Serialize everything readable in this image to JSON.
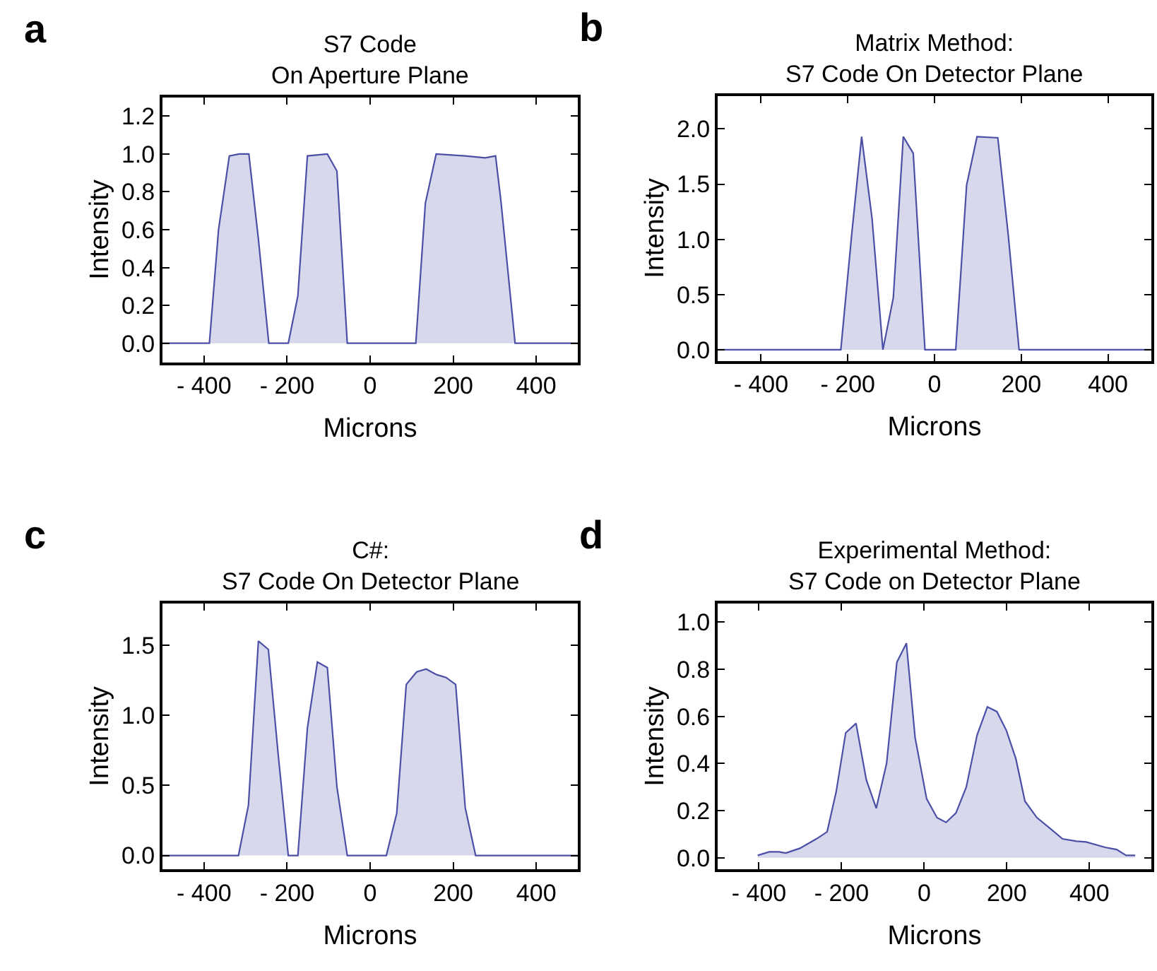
{
  "chart_data": [
    {
      "type": "area",
      "title": "S7 Code\nOn Aperture Plane",
      "xlabel": "Microns",
      "ylabel": "Intensity",
      "annotations": [
        "a"
      ],
      "color": "#4b4fa6",
      "x": [
        -500,
        -387,
        -365,
        -339,
        -315,
        -292,
        -269,
        -244,
        -197,
        -174,
        -151,
        -103,
        -80,
        -55,
        110,
        133,
        159,
        229,
        277,
        302,
        315,
        349,
        500
      ],
      "values": [
        0,
        0,
        0.6,
        0.99,
        1.0,
        1.0,
        0.55,
        0,
        0,
        0.25,
        0.99,
        1.0,
        0.91,
        0,
        0,
        0.74,
        1.0,
        0.99,
        0.98,
        0.99,
        0.75,
        0,
        0
      ],
      "xlim": [
        -500,
        500
      ],
      "ylim": [
        -0.1,
        1.3
      ],
      "xticks": [
        -400,
        -200,
        0,
        200,
        400
      ],
      "yticks": [
        {
          "value": 0,
          "label": "0.0"
        },
        {
          "value": 0.2,
          "label": "0.2"
        },
        {
          "value": 0.4,
          "label": "0.4"
        },
        {
          "value": 0.6,
          "label": "0.6"
        },
        {
          "value": 0.8,
          "label": "0.8"
        },
        {
          "value": 1.0,
          "label": "1.0"
        },
        {
          "value": 1.2,
          "label": "1.2"
        }
      ]
    },
    {
      "type": "area",
      "title": "Matrix Method:\nS7 Code On Detector Plane",
      "xlabel": "Microns",
      "ylabel": "Intensity",
      "annotations": [
        "b"
      ],
      "color": "#4b4fa6",
      "x": [
        -500,
        -216,
        -191,
        -168,
        -144,
        -119,
        -95,
        -72,
        -49,
        -22,
        49,
        74,
        98,
        146,
        170,
        195,
        500
      ],
      "values": [
        0,
        0,
        1.04,
        1.93,
        1.19,
        0,
        0.47,
        1.93,
        1.78,
        0,
        0,
        1.49,
        1.93,
        1.92,
        1.04,
        0,
        0
      ],
      "xlim": [
        -500,
        500
      ],
      "ylim": [
        -0.1,
        2.3
      ],
      "xticks": [
        -400,
        -200,
        0,
        200,
        400
      ],
      "yticks": [
        {
          "value": 0,
          "label": "0.0"
        },
        {
          "value": 0.5,
          "label": "0.5"
        },
        {
          "value": 1.0,
          "label": "1.0"
        },
        {
          "value": 1.5,
          "label": "1.5"
        },
        {
          "value": 2.0,
          "label": "2.0"
        }
      ]
    },
    {
      "type": "area",
      "title": "C#:\nS7 Code On Detector Plane",
      "xlabel": "Microns",
      "ylabel": "Intensity",
      "annotations": [
        "c"
      ],
      "color": "#4b4fa6",
      "x": [
        -500,
        -317,
        -293,
        -269,
        -245,
        -221,
        -197,
        -174,
        -151,
        -127,
        -103,
        -80,
        -55,
        39,
        64,
        87,
        112,
        135,
        160,
        183,
        206,
        229,
        254,
        500
      ],
      "values": [
        0,
        0,
        0.36,
        1.53,
        1.47,
        0.71,
        0,
        0,
        0.91,
        1.38,
        1.34,
        0.49,
        0,
        0,
        0.3,
        1.22,
        1.31,
        1.33,
        1.29,
        1.27,
        1.22,
        0.34,
        0,
        0
      ],
      "xlim": [
        -500,
        500
      ],
      "ylim": [
        -0.1,
        1.8
      ],
      "xticks": [
        -400,
        -200,
        0,
        200,
        400
      ],
      "yticks": [
        {
          "value": 0,
          "label": "0.0"
        },
        {
          "value": 0.5,
          "label": "0.5"
        },
        {
          "value": 1.0,
          "label": "1.0"
        },
        {
          "value": 1.5,
          "label": "1.5"
        }
      ]
    },
    {
      "type": "area",
      "title": "Experimental Method:\nS7 Code on Detector Plane",
      "xlabel": "Microns",
      "ylabel": "Intensity",
      "annotations": [
        "d"
      ],
      "color": "#4b4fa6",
      "x": [
        -403,
        -375,
        -352,
        -335,
        -301,
        -261,
        -235,
        -213,
        -190,
        -165,
        -140,
        -116,
        -91,
        -66,
        -43,
        -22,
        6,
        31,
        53,
        77,
        102,
        128,
        153,
        176,
        199,
        222,
        244,
        273,
        301,
        335,
        369,
        392,
        438,
        466,
        489,
        511
      ],
      "values": [
        0.01,
        0.025,
        0.025,
        0.02,
        0.04,
        0.08,
        0.11,
        0.28,
        0.53,
        0.57,
        0.33,
        0.21,
        0.4,
        0.83,
        0.91,
        0.51,
        0.25,
        0.17,
        0.15,
        0.19,
        0.3,
        0.52,
        0.64,
        0.62,
        0.54,
        0.42,
        0.24,
        0.17,
        0.13,
        0.08,
        0.07,
        0.067,
        0.044,
        0.035,
        0.01,
        0.01
      ],
      "xlim": [
        -500,
        550
      ],
      "ylim": [
        -0.05,
        1.08
      ],
      "xticks": [
        -400,
        -200,
        0,
        200,
        400
      ],
      "yticks": [
        {
          "value": 0,
          "label": "0.0"
        },
        {
          "value": 0.2,
          "label": "0.2"
        },
        {
          "value": 0.4,
          "label": "0.4"
        },
        {
          "value": 0.6,
          "label": "0.6"
        },
        {
          "value": 0.8,
          "label": "0.8"
        },
        {
          "value": 1.0,
          "label": "1.0"
        }
      ]
    }
  ]
}
